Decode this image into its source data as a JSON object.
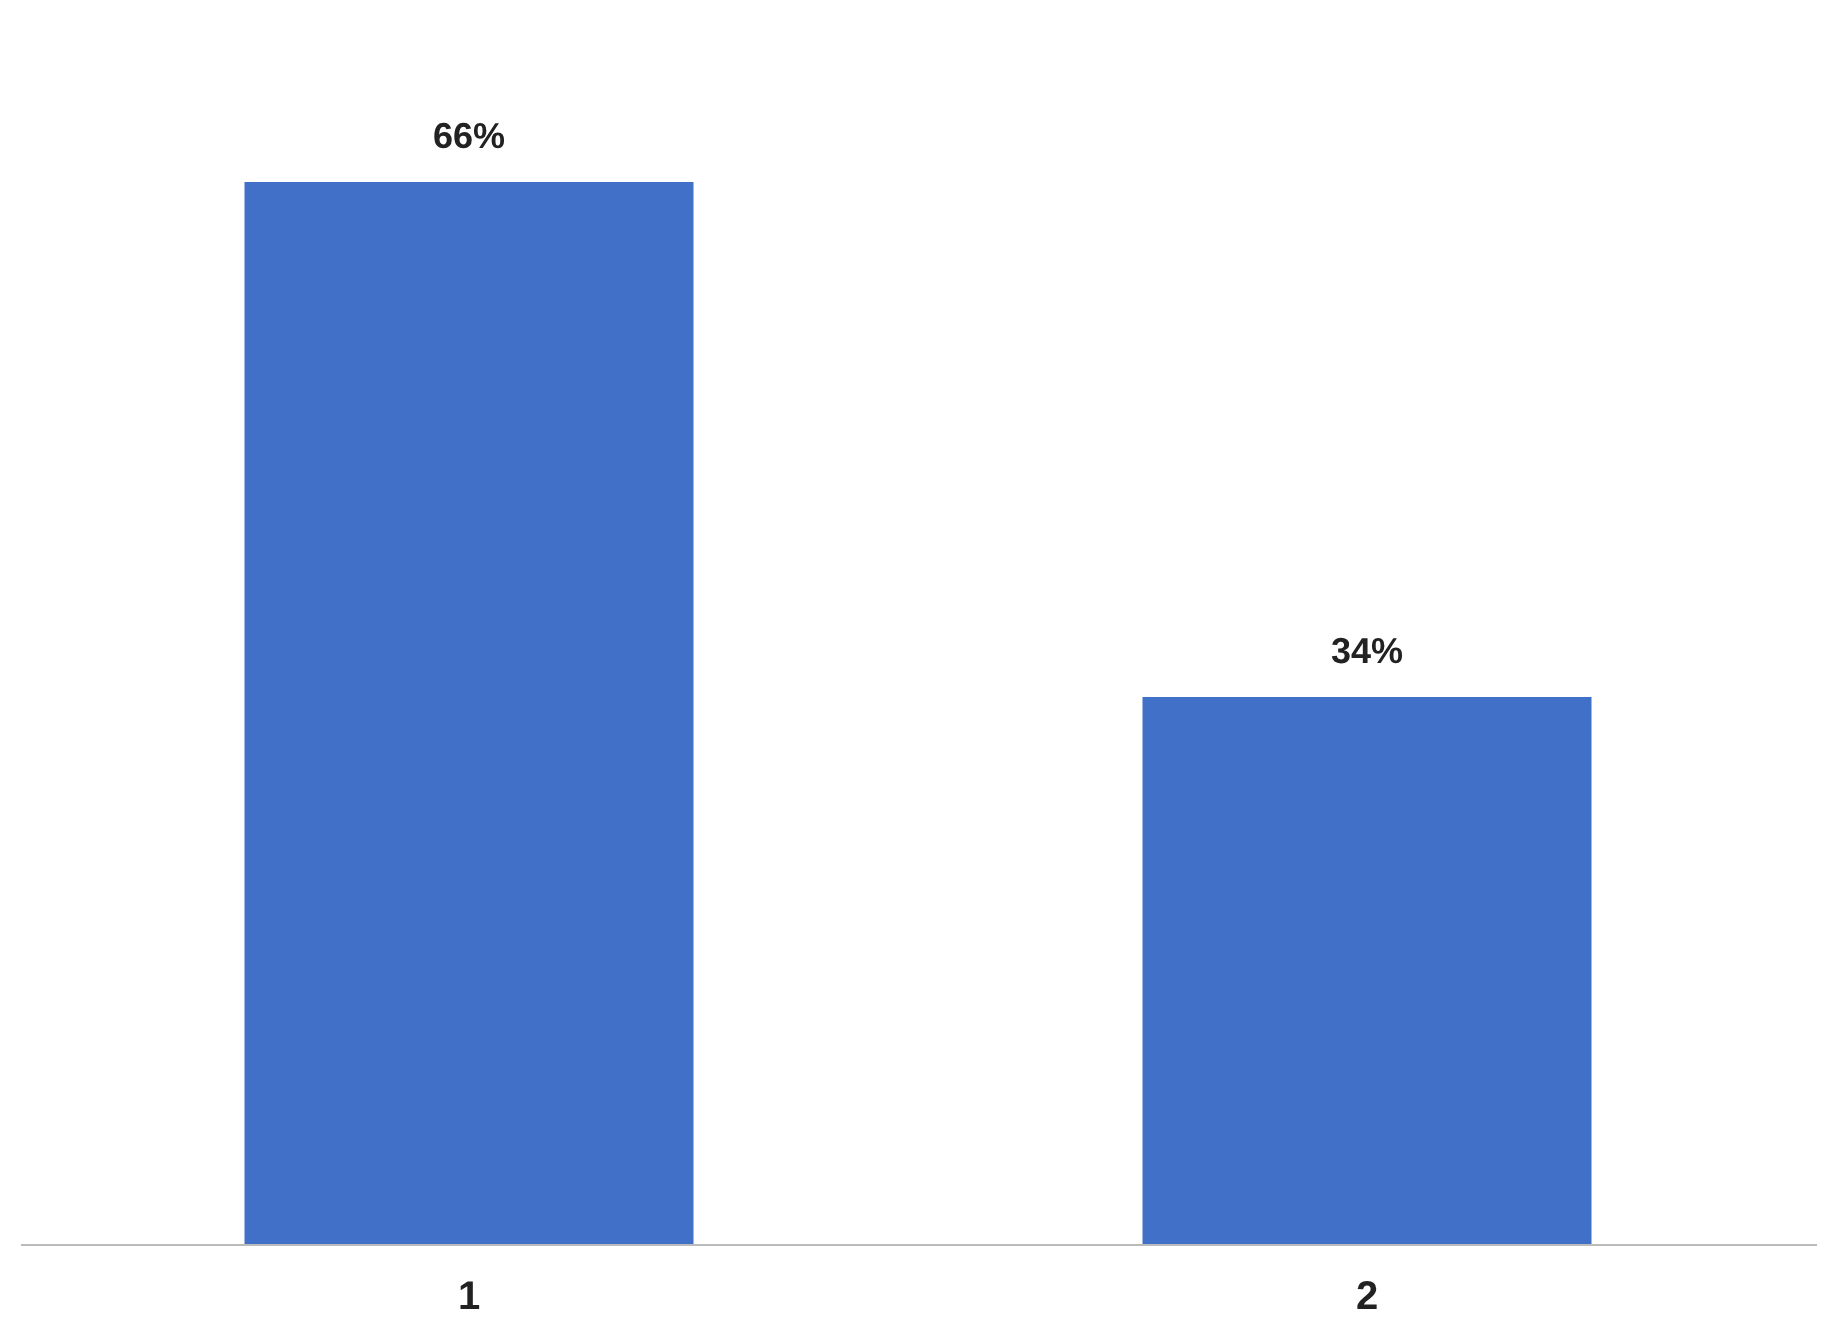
{
  "chart_data": {
    "type": "bar",
    "categories": [
      "1",
      "2"
    ],
    "values": [
      66,
      34
    ],
    "value_labels": [
      "66%",
      "34%"
    ],
    "color": "#4070c8",
    "grid": false
  }
}
